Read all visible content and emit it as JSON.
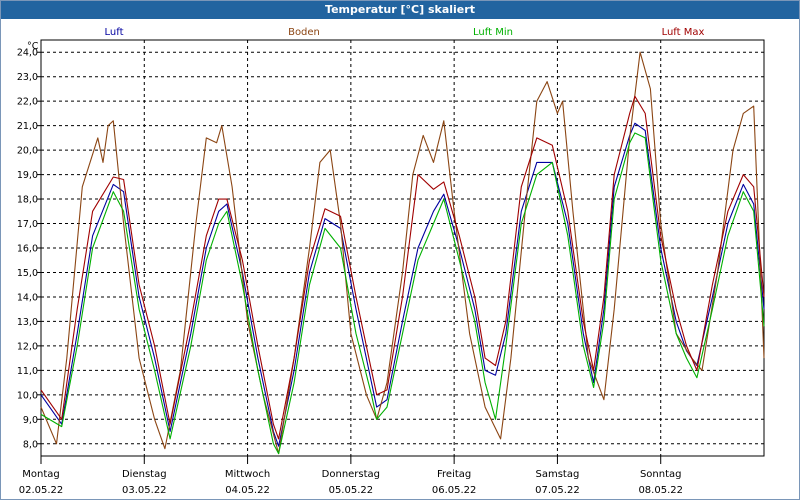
{
  "window": {
    "title": "Temperatur [°C] skaliert",
    "title_bg": "#2264a0"
  },
  "chart_data": {
    "type": "line",
    "title": "Temperatur [°C] skaliert",
    "ylabel": "°C",
    "ylim": [
      7.5,
      24.5
    ],
    "yticks": [
      "8,0",
      "9,0",
      "10,0",
      "11,0",
      "12,0",
      "13,0",
      "14,0",
      "15,0",
      "16,0",
      "17,0",
      "18,0",
      "19,0",
      "20,0",
      "21,0",
      "22,0",
      "23,0",
      "24,0"
    ],
    "xlim": [
      0,
      7
    ],
    "grid": true,
    "legend_position": "top",
    "days": [
      {
        "name": "Montag",
        "date": "02.05.22"
      },
      {
        "name": "Dienstag",
        "date": "03.05.22"
      },
      {
        "name": "Mittwoch",
        "date": "04.05.22"
      },
      {
        "name": "Donnerstag",
        "date": "05.05.22"
      },
      {
        "name": "Freitag",
        "date": "06.05.22"
      },
      {
        "name": "Samstag",
        "date": "07.05.22"
      },
      {
        "name": "Sonntag",
        "date": "08.05.22"
      }
    ],
    "series": [
      {
        "name": "Luft",
        "color": "#0000a0",
        "points": [
          [
            0,
            10.0
          ],
          [
            0.2,
            8.8
          ],
          [
            0.35,
            12.5
          ],
          [
            0.5,
            16.5
          ],
          [
            0.7,
            18.6
          ],
          [
            0.8,
            18.3
          ],
          [
            0.95,
            14.0
          ],
          [
            1.1,
            11.5
          ],
          [
            1.25,
            8.5
          ],
          [
            1.45,
            12.5
          ],
          [
            1.6,
            16.0
          ],
          [
            1.72,
            17.5
          ],
          [
            1.8,
            17.8
          ],
          [
            1.95,
            15.0
          ],
          [
            2.1,
            11.5
          ],
          [
            2.25,
            8.5
          ],
          [
            2.3,
            7.9
          ],
          [
            2.45,
            11.0
          ],
          [
            2.6,
            15.0
          ],
          [
            2.75,
            17.2
          ],
          [
            2.9,
            16.8
          ],
          [
            3.05,
            13.5
          ],
          [
            3.2,
            10.5
          ],
          [
            3.25,
            9.5
          ],
          [
            3.35,
            9.8
          ],
          [
            3.5,
            13.0
          ],
          [
            3.65,
            16.0
          ],
          [
            3.8,
            17.5
          ],
          [
            3.9,
            18.2
          ],
          [
            4.05,
            16.0
          ],
          [
            4.2,
            13.5
          ],
          [
            4.3,
            11.0
          ],
          [
            4.4,
            10.8
          ],
          [
            4.5,
            12.5
          ],
          [
            4.65,
            17.5
          ],
          [
            4.8,
            19.5
          ],
          [
            4.95,
            19.5
          ],
          [
            5.1,
            17.0
          ],
          [
            5.25,
            12.5
          ],
          [
            5.35,
            10.5
          ],
          [
            5.45,
            13.5
          ],
          [
            5.55,
            18.5
          ],
          [
            5.7,
            20.6
          ],
          [
            5.75,
            21.1
          ],
          [
            5.85,
            20.8
          ],
          [
            6.0,
            16.0
          ],
          [
            6.15,
            13.0
          ],
          [
            6.25,
            11.8
          ],
          [
            6.35,
            11.2
          ],
          [
            6.5,
            14.0
          ],
          [
            6.65,
            17.0
          ],
          [
            6.8,
            18.6
          ],
          [
            6.9,
            17.8
          ],
          [
            7.0,
            13.5
          ]
        ]
      },
      {
        "name": "Boden",
        "color": "#8b4513",
        "points": [
          [
            0,
            9.5
          ],
          [
            0.15,
            8.0
          ],
          [
            0.25,
            11.5
          ],
          [
            0.4,
            18.5
          ],
          [
            0.55,
            20.5
          ],
          [
            0.6,
            19.5
          ],
          [
            0.65,
            21.0
          ],
          [
            0.7,
            21.2
          ],
          [
            0.8,
            17.0
          ],
          [
            0.95,
            11.5
          ],
          [
            1.1,
            9.0
          ],
          [
            1.2,
            7.8
          ],
          [
            1.35,
            11.0
          ],
          [
            1.5,
            17.0
          ],
          [
            1.6,
            20.5
          ],
          [
            1.7,
            20.3
          ],
          [
            1.75,
            21.0
          ],
          [
            1.85,
            18.5
          ],
          [
            2.0,
            13.0
          ],
          [
            2.15,
            10.0
          ],
          [
            2.3,
            7.6
          ],
          [
            2.45,
            11.5
          ],
          [
            2.6,
            16.0
          ],
          [
            2.7,
            19.5
          ],
          [
            2.8,
            20.0
          ],
          [
            2.9,
            17.0
          ],
          [
            3.0,
            12.5
          ],
          [
            3.15,
            10.0
          ],
          [
            3.25,
            9.0
          ],
          [
            3.35,
            10.5
          ],
          [
            3.5,
            15.0
          ],
          [
            3.6,
            19.0
          ],
          [
            3.7,
            20.6
          ],
          [
            3.8,
            19.5
          ],
          [
            3.9,
            21.2
          ],
          [
            4.0,
            17.5
          ],
          [
            4.15,
            12.5
          ],
          [
            4.3,
            9.5
          ],
          [
            4.45,
            8.2
          ],
          [
            4.55,
            11.5
          ],
          [
            4.7,
            18.0
          ],
          [
            4.8,
            22.0
          ],
          [
            4.9,
            22.8
          ],
          [
            5.0,
            21.5
          ],
          [
            5.05,
            22.0
          ],
          [
            5.15,
            17.5
          ],
          [
            5.3,
            11.5
          ],
          [
            5.45,
            9.8
          ],
          [
            5.55,
            13.5
          ],
          [
            5.7,
            20.5
          ],
          [
            5.8,
            24.0
          ],
          [
            5.9,
            22.5
          ],
          [
            6.0,
            17.0
          ],
          [
            6.15,
            12.5
          ],
          [
            6.3,
            11.5
          ],
          [
            6.4,
            11.0
          ],
          [
            6.55,
            15.0
          ],
          [
            6.7,
            20.0
          ],
          [
            6.8,
            21.5
          ],
          [
            6.9,
            21.8
          ],
          [
            7.0,
            11.5
          ]
        ]
      },
      {
        "name": "Luft Min",
        "color": "#00b000",
        "points": [
          [
            0,
            9.2
          ],
          [
            0.2,
            8.7
          ],
          [
            0.35,
            12.0
          ],
          [
            0.5,
            16.0
          ],
          [
            0.7,
            18.3
          ],
          [
            0.8,
            17.5
          ],
          [
            0.95,
            13.5
          ],
          [
            1.1,
            11.0
          ],
          [
            1.25,
            8.2
          ],
          [
            1.45,
            12.0
          ],
          [
            1.6,
            15.5
          ],
          [
            1.72,
            17.0
          ],
          [
            1.8,
            17.5
          ],
          [
            1.95,
            14.5
          ],
          [
            2.1,
            11.0
          ],
          [
            2.25,
            8.0
          ],
          [
            2.3,
            7.6
          ],
          [
            2.45,
            10.5
          ],
          [
            2.6,
            14.5
          ],
          [
            2.75,
            16.8
          ],
          [
            2.9,
            16.0
          ],
          [
            3.05,
            12.5
          ],
          [
            3.2,
            10.0
          ],
          [
            3.25,
            9.0
          ],
          [
            3.35,
            9.5
          ],
          [
            3.5,
            12.5
          ],
          [
            3.65,
            15.5
          ],
          [
            3.8,
            17.0
          ],
          [
            3.9,
            18.0
          ],
          [
            4.05,
            15.5
          ],
          [
            4.2,
            13.0
          ],
          [
            4.3,
            10.5
          ],
          [
            4.4,
            9.0
          ],
          [
            4.5,
            12.0
          ],
          [
            4.65,
            17.0
          ],
          [
            4.8,
            19.0
          ],
          [
            4.95,
            19.5
          ],
          [
            5.1,
            16.5
          ],
          [
            5.25,
            12.0
          ],
          [
            5.35,
            10.3
          ],
          [
            5.45,
            13.0
          ],
          [
            5.55,
            18.0
          ],
          [
            5.7,
            20.3
          ],
          [
            5.75,
            20.7
          ],
          [
            5.85,
            20.5
          ],
          [
            6.0,
            15.5
          ],
          [
            6.15,
            12.5
          ],
          [
            6.25,
            11.5
          ],
          [
            6.35,
            10.7
          ],
          [
            6.5,
            13.5
          ],
          [
            6.65,
            16.5
          ],
          [
            6.8,
            18.3
          ],
          [
            6.9,
            17.5
          ],
          [
            7.0,
            12.8
          ]
        ]
      },
      {
        "name": "Luft Max",
        "color": "#a00000",
        "points": [
          [
            0,
            10.2
          ],
          [
            0.2,
            9.0
          ],
          [
            0.35,
            13.5
          ],
          [
            0.5,
            17.5
          ],
          [
            0.7,
            18.9
          ],
          [
            0.8,
            18.8
          ],
          [
            0.95,
            14.5
          ],
          [
            1.1,
            12.0
          ],
          [
            1.25,
            8.8
          ],
          [
            1.45,
            13.0
          ],
          [
            1.6,
            16.5
          ],
          [
            1.72,
            18.0
          ],
          [
            1.8,
            18.0
          ],
          [
            1.95,
            15.5
          ],
          [
            2.1,
            12.0
          ],
          [
            2.25,
            8.8
          ],
          [
            2.3,
            8.2
          ],
          [
            2.45,
            11.5
          ],
          [
            2.6,
            15.5
          ],
          [
            2.75,
            17.6
          ],
          [
            2.9,
            17.3
          ],
          [
            3.05,
            14.0
          ],
          [
            3.2,
            11.0
          ],
          [
            3.25,
            10.0
          ],
          [
            3.35,
            10.2
          ],
          [
            3.5,
            14.0
          ],
          [
            3.65,
            19.0
          ],
          [
            3.8,
            18.4
          ],
          [
            3.9,
            18.7
          ],
          [
            4.05,
            16.5
          ],
          [
            4.2,
            14.0
          ],
          [
            4.3,
            11.5
          ],
          [
            4.4,
            11.2
          ],
          [
            4.5,
            13.0
          ],
          [
            4.65,
            18.5
          ],
          [
            4.8,
            20.5
          ],
          [
            4.95,
            20.2
          ],
          [
            5.1,
            17.5
          ],
          [
            5.25,
            13.0
          ],
          [
            5.35,
            11.0
          ],
          [
            5.45,
            14.0
          ],
          [
            5.55,
            19.0
          ],
          [
            5.7,
            21.5
          ],
          [
            5.75,
            22.2
          ],
          [
            5.85,
            21.5
          ],
          [
            6.0,
            16.5
          ],
          [
            6.15,
            13.5
          ],
          [
            6.25,
            12.0
          ],
          [
            6.35,
            11.0
          ],
          [
            6.5,
            14.5
          ],
          [
            6.65,
            17.5
          ],
          [
            6.8,
            19.0
          ],
          [
            6.9,
            18.5
          ],
          [
            7.0,
            14.0
          ]
        ]
      }
    ]
  }
}
